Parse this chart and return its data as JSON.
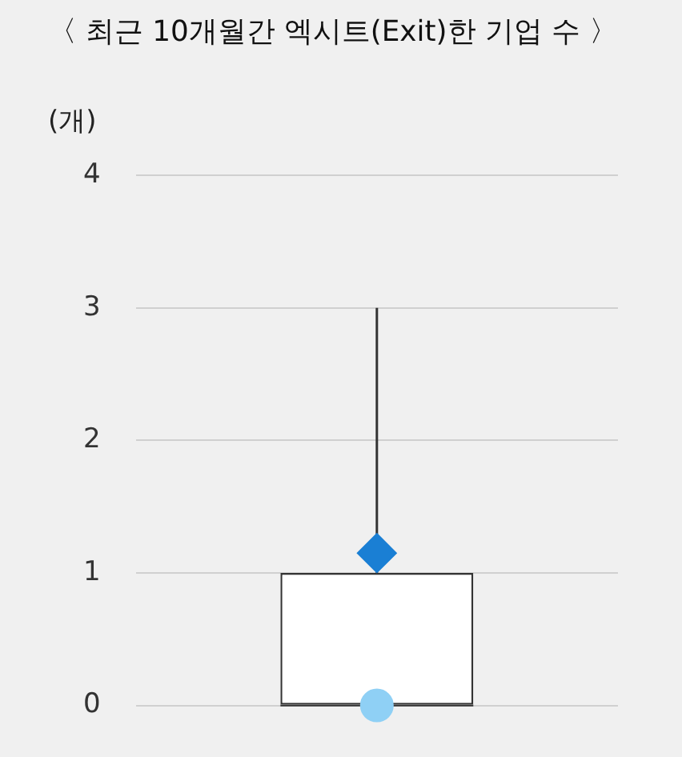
{
  "chart_data": {
    "type": "box",
    "title": "〈 최근 10개월간 엑시트(Exit)한 기업 수 〉",
    "ylabel": "(개)",
    "categories": [
      null
    ],
    "boxes": [
      {
        "low": 0,
        "q1": 0,
        "median": 0,
        "q3": 1,
        "high": 3,
        "mean": 1.15
      }
    ],
    "series": [
      {
        "type": "scatter",
        "color": "#8fd0f5",
        "values": [
          0
        ]
      }
    ],
    "ylim": [
      0,
      4
    ],
    "yticks": [
      0,
      1,
      2,
      3,
      4
    ],
    "grid": "y"
  }
}
